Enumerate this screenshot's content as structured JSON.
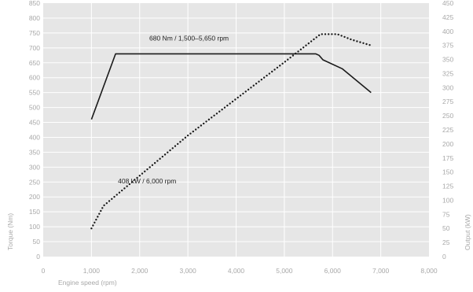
{
  "chart_data": {
    "type": "line",
    "xlabel": "Engine speed (rpm)",
    "ylabel_left": "Torque (Nm)",
    "ylabel_right": "Output (kW)",
    "xlim": [
      0,
      8000
    ],
    "ylim_left": [
      0,
      850
    ],
    "ylim_right": [
      0,
      450
    ],
    "x_ticks": [
      "0",
      "1,000",
      "2,000",
      "3,000",
      "4,000",
      "5,000",
      "6,000",
      "7,000",
      "8,000"
    ],
    "y_ticks_left": [
      "0",
      "50",
      "100",
      "150",
      "200",
      "250",
      "300",
      "350",
      "400",
      "450",
      "500",
      "550",
      "600",
      "650",
      "700",
      "750",
      "800",
      "850"
    ],
    "y_ticks_right": [
      "0",
      "25",
      "50",
      "75",
      "100",
      "125",
      "150",
      "175",
      "200",
      "225",
      "250",
      "275",
      "300",
      "325",
      "350",
      "375",
      "400",
      "425",
      "450"
    ],
    "grid": true,
    "background": "#e6e6e6",
    "grid_color": "#ffffff",
    "series": [
      {
        "axis": "left",
        "style": "solid",
        "color": "#1a1a1a",
        "x": [
          1000,
          1500,
          5650,
          5720,
          5800,
          6200,
          6800
        ],
        "y": [
          460,
          680,
          680,
          675,
          660,
          630,
          550
        ]
      },
      {
        "axis": "right",
        "style": "dotted",
        "color": "#1a1a1a",
        "x": [
          1000,
          1250,
          1600,
          3000,
          5000,
          5750,
          6100,
          6400,
          6800
        ],
        "y": [
          50,
          90,
          115,
          215,
          345,
          395,
          395,
          385,
          375
        ]
      }
    ],
    "annotations": [
      {
        "text": "680 Nm / 1,500–5,650 rpm",
        "x": 2200,
        "y_left": 725
      },
      {
        "text": "408 kW / 6,000 rpm",
        "x": 1550,
        "y_left": 245
      }
    ]
  }
}
